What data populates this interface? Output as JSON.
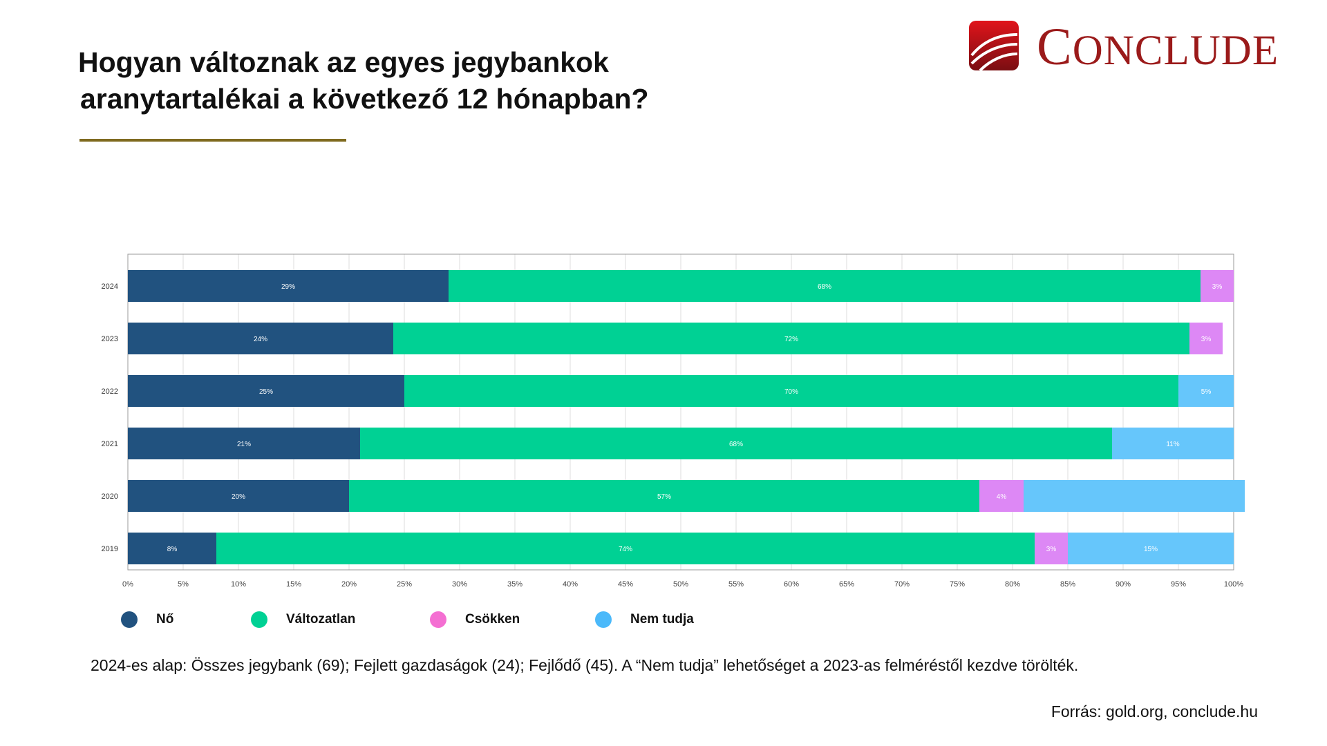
{
  "header": {
    "title_line1": "Hogyan változnak az egyes jegybankok",
    "title_line2": "aranytartalékai a következő 12 hónapban?",
    "accent_color": "#7f6a1f"
  },
  "logo": {
    "text_first": "C",
    "text_rest": "ONCLUDE",
    "color": "#9b1a1a"
  },
  "chart_data": {
    "type": "bar",
    "orientation": "horizontal",
    "stacked": true,
    "categories": [
      "2024",
      "2023",
      "2022",
      "2021",
      "2020",
      "2019"
    ],
    "series": [
      {
        "name": "Nő",
        "color": "#21527f",
        "values": [
          29,
          24,
          25,
          21,
          20,
          8
        ],
        "labels": [
          "29%",
          "24%",
          "25%",
          "21%",
          "20%",
          "8%"
        ]
      },
      {
        "name": "Változatlan",
        "color": "#00d194",
        "values": [
          68,
          72,
          70,
          68,
          57,
          74
        ],
        "labels": [
          "68%",
          "72%",
          "70%",
          "68%",
          "57%",
          "74%"
        ]
      },
      {
        "name": "Csökken",
        "color": "#dd88f5",
        "values": [
          3,
          3,
          0,
          0,
          4,
          3
        ],
        "labels": [
          "3%",
          "3%",
          "",
          "",
          "4%",
          "3%"
        ]
      },
      {
        "name": "Nem tudja",
        "color": "#66c6fb",
        "values": [
          0,
          0,
          5,
          11,
          20,
          15
        ],
        "labels": [
          "",
          "",
          "5%",
          "11%",
          "",
          "15%"
        ]
      }
    ],
    "xlim": [
      0,
      100
    ],
    "xticks": [
      "0%",
      "5%",
      "10%",
      "15%",
      "20%",
      "25%",
      "30%",
      "35%",
      "40%",
      "45%",
      "50%",
      "55%",
      "60%",
      "65%",
      "70%",
      "75%",
      "80%",
      "85%",
      "90%",
      "95%",
      "100%"
    ],
    "grid": true,
    "legend_position": "bottom",
    "legend": [
      {
        "label": "Nő",
        "color": "#21527f"
      },
      {
        "label": "Változatlan",
        "color": "#00d194"
      },
      {
        "label": "Csökken",
        "color": "#f46fd2"
      },
      {
        "label": "Nem tudja",
        "color": "#4bb9fa"
      }
    ]
  },
  "footnote": "2024-es alap: Összes jegybank (69); Fejlett gazdaságok (24); Fejlődő (45). A “Nem tudja” lehetőséget a 2023-as felméréstől kezdve törölték.",
  "source": "Forrás: gold.org, conclude.hu"
}
